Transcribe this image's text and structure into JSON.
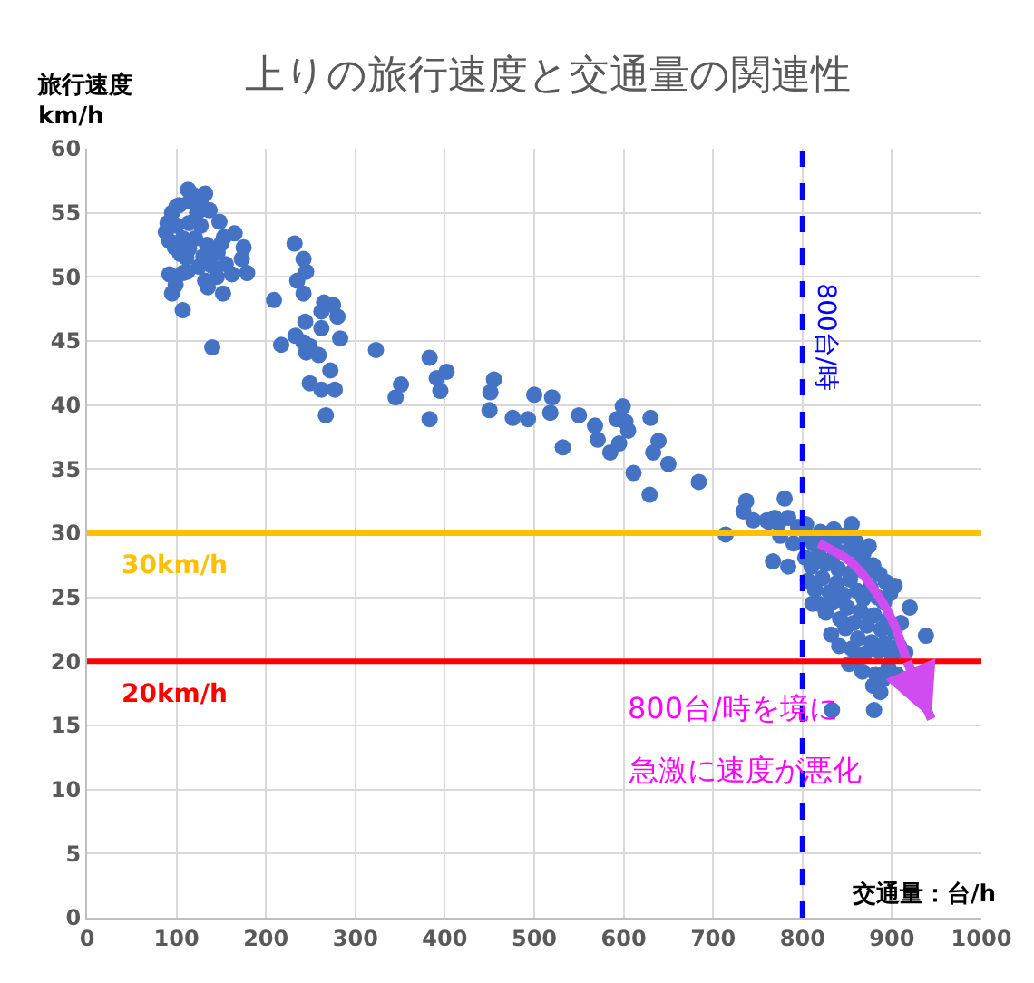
{
  "chart_data": {
    "type": "scatter",
    "title": "上りの旅行速度と交通量の関連性",
    "ylabel": "旅行速度\nkm/h",
    "xlabel": "交通量：台/h",
    "xlim": [
      0,
      1000
    ],
    "xticks": [
      0,
      100,
      200,
      300,
      400,
      500,
      600,
      700,
      800,
      900,
      1000
    ],
    "ylim": [
      0,
      60
    ],
    "yticks": [
      0,
      5,
      10,
      15,
      20,
      25,
      30,
      35,
      40,
      45,
      50,
      55,
      60
    ],
    "grid": true,
    "marker": "circle",
    "series": [
      {
        "color": "#4472c4",
        "x": [
          88,
          90,
          92,
          95,
          98,
          103,
          104,
          111,
          115,
          119,
          123,
          127,
          130,
          132,
          134,
          137,
          146,
          148,
          150,
          153,
          155,
          107,
          125,
          145,
          100,
          113,
          165,
          175,
          173,
          179,
          162,
          152,
          139,
          132,
          135,
          92,
          112,
          99,
          95,
          107,
          140,
          209,
          232,
          242,
          245,
          235,
          242,
          265,
          275,
          280,
          262,
          244,
          262,
          283,
          217,
          233,
          242,
          249,
          245,
          259,
          272,
          249,
          262,
          277,
          267,
          323,
          351,
          345,
          383,
          391,
          402,
          395,
          383,
          455,
          451,
          450,
          476,
          493,
          500,
          520,
          518,
          532,
          550,
          568,
          571,
          585,
          592,
          599,
          602,
          605,
          595,
          630,
          639,
          633,
          650,
          611,
          629,
          684,
          714,
          734,
          737,
          745,
          760,
          762,
          769,
          773,
          780,
          784,
          775,
          767,
          784,
          795,
          790,
          804,
          835,
          855,
          805,
          812,
          820,
          828,
          836,
          845,
          852,
          860,
          868,
          874,
          803,
          810,
          818,
          826,
          833,
          840,
          856,
          864,
          871,
          879,
          886,
          893,
          806,
          814,
          822,
          830,
          838,
          846,
          853,
          861,
          868,
          876,
          884,
          891,
          898,
          903,
          811,
          818,
          826,
          834,
          842,
          850,
          857,
          865,
          872,
          880,
          888,
          895,
          903,
          910,
          920,
          832,
          841,
          848,
          855,
          862,
          870,
          877,
          885,
          892,
          900,
          908,
          915,
          938,
          852,
          860,
          867,
          882,
          890,
          896,
          905,
          879,
          833,
          880,
          887,
          100,
          114,
          127,
          107,
          121,
          114
        ],
        "values": [
          53.5,
          54.2,
          52.8,
          55.0,
          52.3,
          55.6,
          51.8,
          51.5,
          55.9,
          56.4,
          55.0,
          56.0,
          51.6,
          56.5,
          52.5,
          55.2,
          51.9,
          54.3,
          52.6,
          53.1,
          51.0,
          50.3,
          50.8,
          50.0,
          55.5,
          56.8,
          53.4,
          52.3,
          51.4,
          50.3,
          50.2,
          48.7,
          50.9,
          49.7,
          49.2,
          50.2,
          50.4,
          49.4,
          48.7,
          47.4,
          44.5,
          48.2,
          52.6,
          51.4,
          50.4,
          49.7,
          48.7,
          48.0,
          47.8,
          46.9,
          47.3,
          46.5,
          46.0,
          45.2,
          44.7,
          45.4,
          44.9,
          44.6,
          44.1,
          43.9,
          42.7,
          41.7,
          41.2,
          41.2,
          39.2,
          44.3,
          41.6,
          40.6,
          43.7,
          42.1,
          42.6,
          41.1,
          38.9,
          42.0,
          41.0,
          39.6,
          39.0,
          38.9,
          40.8,
          40.6,
          39.4,
          36.7,
          39.2,
          38.4,
          37.3,
          36.3,
          38.9,
          39.9,
          38.7,
          38.0,
          37.0,
          39.0,
          37.2,
          36.3,
          35.4,
          34.7,
          33.0,
          34.0,
          29.9,
          31.7,
          32.5,
          31.0,
          31.0,
          30.9,
          31.2,
          30.8,
          32.7,
          31.2,
          29.8,
          27.8,
          27.4,
          30.5,
          29.2,
          30.7,
          30.3,
          30.7,
          29.8,
          29.2,
          30.1,
          29.5,
          28.9,
          29.8,
          28.7,
          29.3,
          28.4,
          29.0,
          28.1,
          27.4,
          28.3,
          27.6,
          28.0,
          27.2,
          27.0,
          27.8,
          26.9,
          27.5,
          26.8,
          26.2,
          26.3,
          25.6,
          26.5,
          25.4,
          26.1,
          25.2,
          26.4,
          25.5,
          24.9,
          25.8,
          25.0,
          24.6,
          25.3,
          25.9,
          24.5,
          24.5,
          23.8,
          24.6,
          23.3,
          24.2,
          23.0,
          23.9,
          22.8,
          23.6,
          22.5,
          23.2,
          22.3,
          23.0,
          24.2,
          22.1,
          21.2,
          22.6,
          21.0,
          21.8,
          20.6,
          21.5,
          20.8,
          21.4,
          20.4,
          21.2,
          20.7,
          22.0,
          19.8,
          20.1,
          19.2,
          19.0,
          18.6,
          19.5,
          19.0,
          18.1,
          16.2,
          16.2,
          17.6,
          54.0,
          54.2,
          54.0,
          53.0,
          53.0,
          52.2
        ]
      },
      {
        "type": "line",
        "color": "#d04cf0",
        "marker": "none",
        "x": [
          818,
          855,
          882,
          903,
          916,
          944
        ],
        "values": [
          29.2,
          27.7,
          25.4,
          22.8,
          20.2,
          15.5
        ]
      }
    ],
    "ref_lines": [
      {
        "axis": "y",
        "value": 30,
        "label": "30km/h",
        "color": "#ffc000"
      },
      {
        "axis": "y",
        "value": 20,
        "label": "20km/h",
        "color": "#ff0000"
      },
      {
        "axis": "x",
        "value": 800,
        "label": "800台/時",
        "color": "#0000ff",
        "line_style": "dashed"
      }
    ],
    "annotations": [
      "800台/時を境に",
      "急激に速度が悪化"
    ]
  }
}
